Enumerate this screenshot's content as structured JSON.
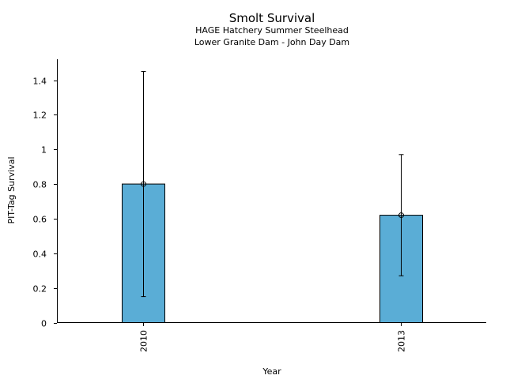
{
  "chart_data": {
    "type": "bar",
    "title": "Smolt Survival",
    "subtitle_lines": [
      "HAGE Hatchery Summer Steelhead",
      "Lower Granite Dam - John Day Dam"
    ],
    "xlabel": "Year",
    "ylabel": "PIT-Tag Survival",
    "categories": [
      "2010",
      "2013"
    ],
    "values": [
      0.8,
      0.62
    ],
    "error_low": [
      0.15,
      0.27
    ],
    "error_high": [
      1.45,
      0.97
    ],
    "ylim": [
      0,
      1.52
    ],
    "yticks": [
      0,
      0.2,
      0.4,
      0.6,
      0.8,
      1,
      1.2,
      1.4
    ],
    "ytick_labels": [
      "0",
      "0.2",
      "0.4",
      "0.6",
      "0.8",
      "1",
      "1.2",
      "1.4"
    ],
    "bar_color": "#5aadd6",
    "grid": false,
    "legend": "none"
  }
}
